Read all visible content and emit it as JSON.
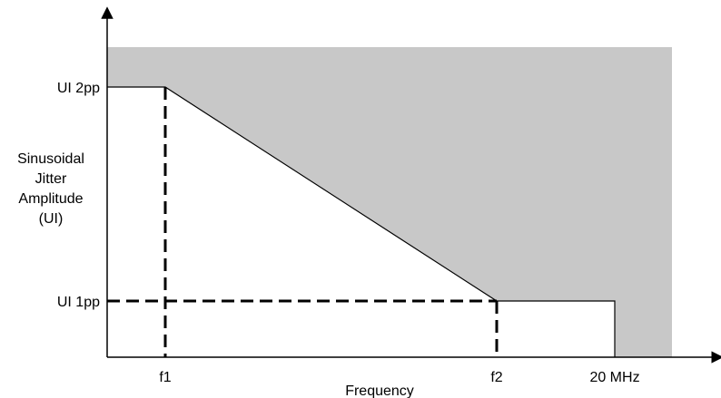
{
  "chart_data": {
    "type": "area",
    "title": "",
    "xlabel": "Frequency",
    "ylabel_lines": [
      "Sinusoidal",
      "Jitter",
      "Amplitude",
      "(UI)"
    ],
    "x_scale": "log",
    "x_ticks": [
      {
        "key": "f1",
        "label": "f1"
      },
      {
        "key": "f2",
        "label": "f2"
      },
      {
        "key": "fmax",
        "label": "20 MHz"
      }
    ],
    "y_ticks": [
      {
        "key": "high",
        "label": "UI 2pp"
      },
      {
        "key": "low",
        "label": "UI 1pp"
      }
    ],
    "mask_boundary": [
      "f1:high",
      "f2:low",
      "fmax:low"
    ],
    "grid": false,
    "legend": "none",
    "colors": {
      "shaded_region": "#c8c8c8",
      "line": "#000000",
      "background": "#ffffff"
    }
  }
}
